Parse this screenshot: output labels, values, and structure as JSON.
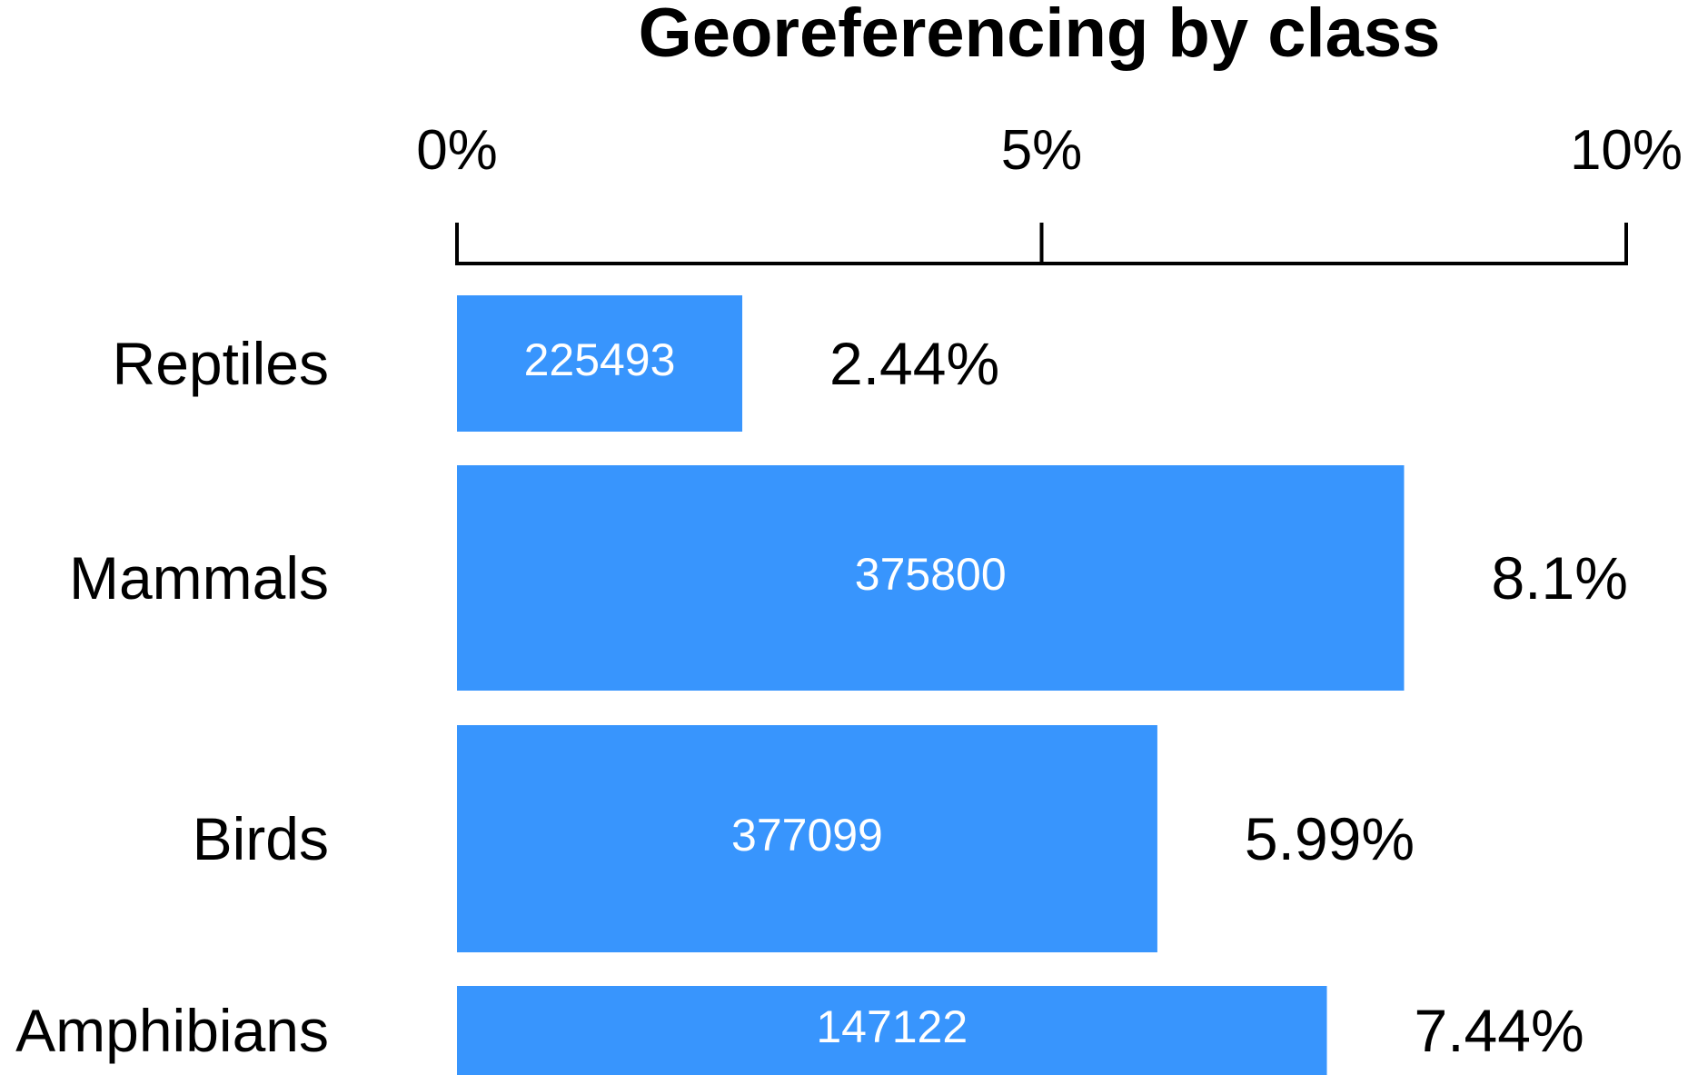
{
  "chart_data": {
    "type": "bar",
    "orientation": "horizontal",
    "title": "Georeferencing by class",
    "xlim": [
      0,
      10
    ],
    "ticks": [
      {
        "value": 0,
        "label": "0%"
      },
      {
        "value": 5,
        "label": "5%"
      },
      {
        "value": 10,
        "label": "10%"
      }
    ],
    "categories": [
      "Reptiles",
      "Mammals",
      "Birds",
      "Amphibians"
    ],
    "values": [
      2.44,
      8.1,
      5.99,
      7.44
    ],
    "value_labels": [
      "2.44%",
      "8.1%",
      "5.99%",
      "7.44%"
    ],
    "counts": [
      "225493",
      "375800",
      "377099",
      "147122"
    ],
    "bar_color": "#3895fd",
    "axis_position": "top",
    "grid": false,
    "legend": "none"
  }
}
